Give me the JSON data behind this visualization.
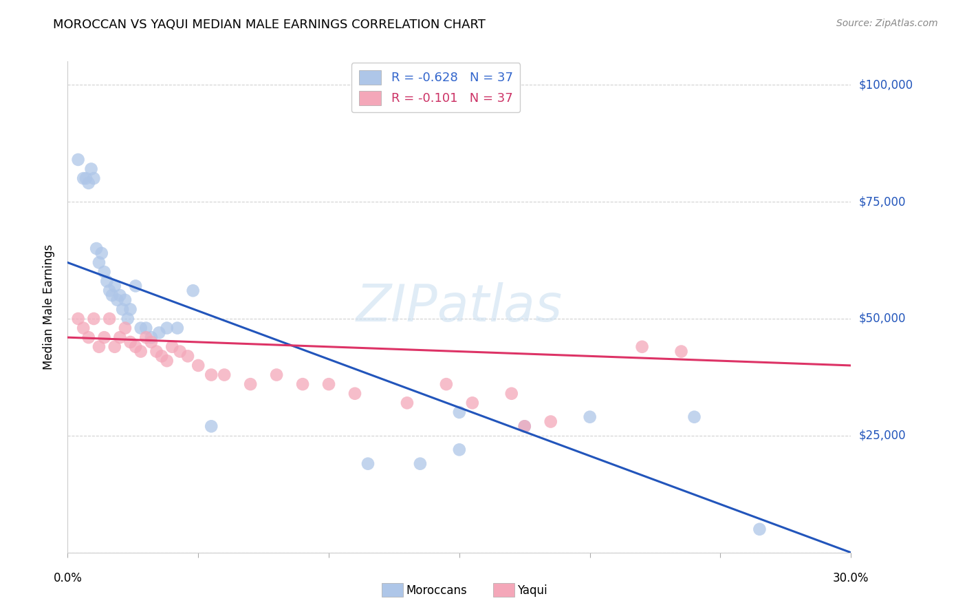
{
  "title": "MOROCCAN VS YAQUI MEDIAN MALE EARNINGS CORRELATION CHART",
  "source": "Source: ZipAtlas.com",
  "ylabel": "Median Male Earnings",
  "yticks": [
    0,
    25000,
    50000,
    75000,
    100000
  ],
  "ytick_labels": [
    "",
    "$25,000",
    "$50,000",
    "$75,000",
    "$100,000"
  ],
  "xlim": [
    0.0,
    0.3
  ],
  "ylim": [
    0,
    105000
  ],
  "legend_entries": [
    {
      "label": "R = -0.628   N = 37",
      "color": "#aec6e8"
    },
    {
      "label": "R = -0.101   N = 37",
      "color": "#f4a7b9"
    }
  ],
  "legend_label_colors": [
    "#3366cc",
    "#cc3366"
  ],
  "bottom_legend": [
    "Moroccans",
    "Yaqui"
  ],
  "watermark": "ZIPatlas",
  "blue_scatter_color": "#aec6e8",
  "pink_scatter_color": "#f4a7b9",
  "blue_line_color": "#2255bb",
  "pink_line_color": "#dd3366",
  "blue_line": {
    "x0": 0.0,
    "y0": 62000,
    "x1": 0.3,
    "y1": 0
  },
  "pink_line": {
    "x0": 0.0,
    "y0": 46000,
    "x1": 0.3,
    "y1": 40000
  },
  "moroccan_x": [
    0.004,
    0.006,
    0.007,
    0.008,
    0.009,
    0.01,
    0.011,
    0.012,
    0.013,
    0.014,
    0.015,
    0.016,
    0.017,
    0.018,
    0.019,
    0.02,
    0.021,
    0.022,
    0.023,
    0.024,
    0.026,
    0.028,
    0.03,
    0.032,
    0.035,
    0.038,
    0.042,
    0.048,
    0.055,
    0.115,
    0.135,
    0.15,
    0.175,
    0.2,
    0.24,
    0.265,
    0.15
  ],
  "moroccan_y": [
    84000,
    80000,
    80000,
    79000,
    82000,
    80000,
    65000,
    62000,
    64000,
    60000,
    58000,
    56000,
    55000,
    57000,
    54000,
    55000,
    52000,
    54000,
    50000,
    52000,
    57000,
    48000,
    48000,
    46000,
    47000,
    48000,
    48000,
    56000,
    27000,
    19000,
    19000,
    22000,
    27000,
    29000,
    29000,
    5000,
    30000
  ],
  "yaqui_x": [
    0.004,
    0.006,
    0.008,
    0.01,
    0.012,
    0.014,
    0.016,
    0.018,
    0.02,
    0.022,
    0.024,
    0.026,
    0.028,
    0.03,
    0.032,
    0.034,
    0.036,
    0.038,
    0.04,
    0.043,
    0.046,
    0.05,
    0.055,
    0.06,
    0.07,
    0.08,
    0.09,
    0.1,
    0.11,
    0.13,
    0.145,
    0.155,
    0.17,
    0.185,
    0.22,
    0.235,
    0.175
  ],
  "yaqui_y": [
    50000,
    48000,
    46000,
    50000,
    44000,
    46000,
    50000,
    44000,
    46000,
    48000,
    45000,
    44000,
    43000,
    46000,
    45000,
    43000,
    42000,
    41000,
    44000,
    43000,
    42000,
    40000,
    38000,
    38000,
    36000,
    38000,
    36000,
    36000,
    34000,
    32000,
    36000,
    32000,
    34000,
    28000,
    44000,
    43000,
    27000
  ]
}
